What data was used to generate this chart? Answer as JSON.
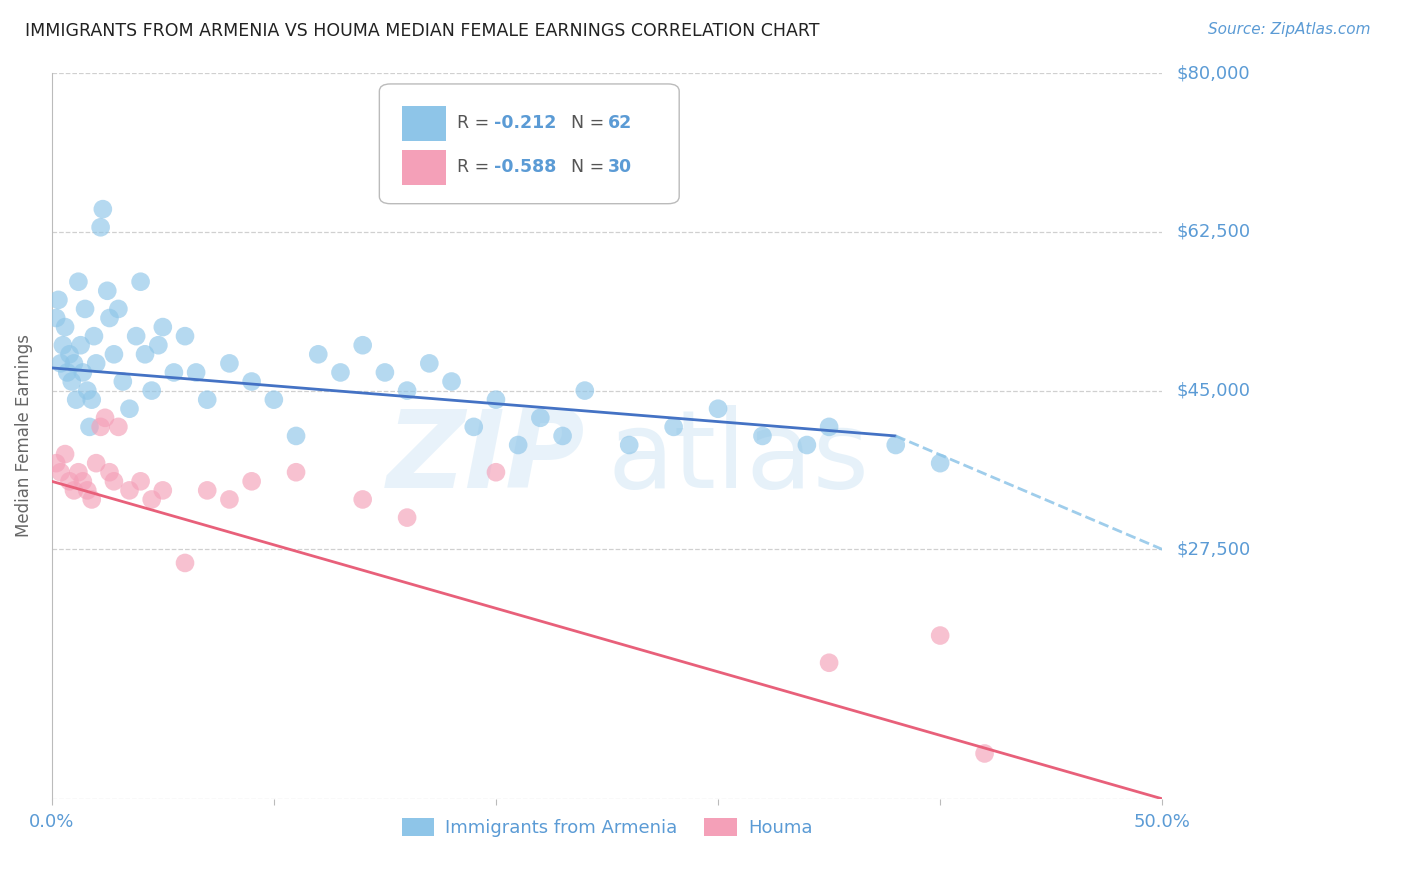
{
  "title": "IMMIGRANTS FROM ARMENIA VS HOUMA MEDIAN FEMALE EARNINGS CORRELATION CHART",
  "source": "Source: ZipAtlas.com",
  "ylabel": "Median Female Earnings",
  "xlim": [
    0.0,
    0.5
  ],
  "ylim": [
    0,
    80000
  ],
  "yticks": [
    0,
    27500,
    45000,
    62500,
    80000
  ],
  "ytick_labels": [
    "",
    "$27,500",
    "$45,000",
    "$62,500",
    "$80,000"
  ],
  "xticks": [
    0.0,
    0.1,
    0.2,
    0.3,
    0.4,
    0.5
  ],
  "r_armenia": -0.212,
  "n_armenia": 62,
  "r_houma": -0.588,
  "n_houma": 30,
  "color_armenia": "#8ec5e8",
  "color_houma": "#f4a0b8",
  "color_line_armenia": "#4472c4",
  "color_line_houma": "#e8607a",
  "color_axis_labels": "#5b9bd5",
  "color_grid": "#d0d0d0",
  "armenia_x": [
    0.002,
    0.003,
    0.004,
    0.005,
    0.006,
    0.007,
    0.008,
    0.009,
    0.01,
    0.011,
    0.012,
    0.013,
    0.014,
    0.015,
    0.016,
    0.017,
    0.018,
    0.019,
    0.02,
    0.022,
    0.023,
    0.025,
    0.026,
    0.028,
    0.03,
    0.032,
    0.035,
    0.038,
    0.04,
    0.042,
    0.045,
    0.048,
    0.05,
    0.055,
    0.06,
    0.065,
    0.07,
    0.08,
    0.09,
    0.1,
    0.11,
    0.12,
    0.13,
    0.14,
    0.15,
    0.16,
    0.17,
    0.18,
    0.19,
    0.2,
    0.21,
    0.22,
    0.23,
    0.24,
    0.26,
    0.28,
    0.3,
    0.32,
    0.34,
    0.35,
    0.38,
    0.4
  ],
  "armenia_y": [
    53000,
    55000,
    48000,
    50000,
    52000,
    47000,
    49000,
    46000,
    48000,
    44000,
    57000,
    50000,
    47000,
    54000,
    45000,
    41000,
    44000,
    51000,
    48000,
    63000,
    65000,
    56000,
    53000,
    49000,
    54000,
    46000,
    43000,
    51000,
    57000,
    49000,
    45000,
    50000,
    52000,
    47000,
    51000,
    47000,
    44000,
    48000,
    46000,
    44000,
    40000,
    49000,
    47000,
    50000,
    47000,
    45000,
    48000,
    46000,
    41000,
    44000,
    39000,
    42000,
    40000,
    45000,
    39000,
    41000,
    43000,
    40000,
    39000,
    41000,
    39000,
    37000
  ],
  "houma_x": [
    0.002,
    0.004,
    0.006,
    0.008,
    0.01,
    0.012,
    0.014,
    0.016,
    0.018,
    0.02,
    0.022,
    0.024,
    0.026,
    0.028,
    0.03,
    0.035,
    0.04,
    0.045,
    0.05,
    0.06,
    0.07,
    0.08,
    0.09,
    0.11,
    0.14,
    0.16,
    0.2,
    0.35,
    0.4,
    0.42
  ],
  "houma_y": [
    37000,
    36000,
    38000,
    35000,
    34000,
    36000,
    35000,
    34000,
    33000,
    37000,
    41000,
    42000,
    36000,
    35000,
    41000,
    34000,
    35000,
    33000,
    34000,
    26000,
    34000,
    33000,
    35000,
    36000,
    33000,
    31000,
    36000,
    15000,
    18000,
    5000
  ],
  "trendline_armenia_x0": 0.0,
  "trendline_armenia_x1": 0.38,
  "trendline_armenia_y0": 47500,
  "trendline_armenia_y1": 40000,
  "trendline_dash_x0": 0.38,
  "trendline_dash_x1": 0.5,
  "trendline_dash_y0": 40000,
  "trendline_dash_y1": 27500,
  "trendline_houma_x0": 0.0,
  "trendline_houma_x1": 0.5,
  "trendline_houma_y0": 35000,
  "trendline_houma_y1": 0
}
